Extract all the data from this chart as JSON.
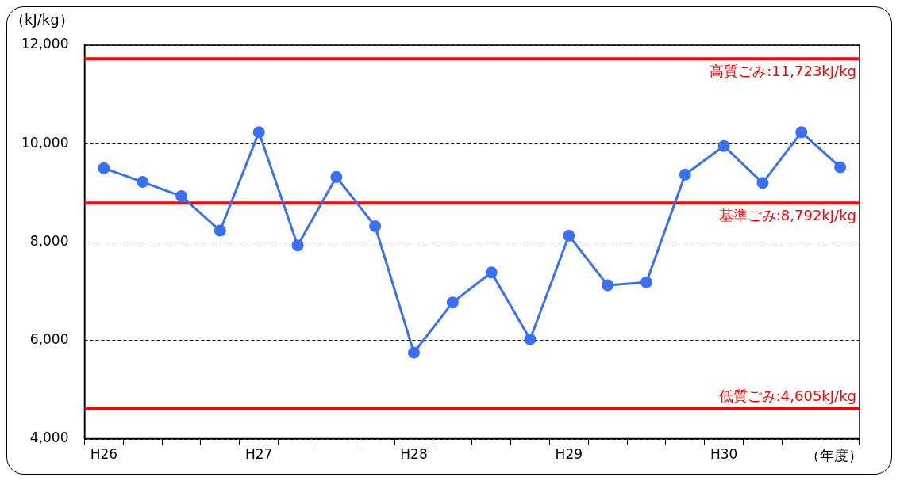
{
  "chart_data": {
    "type": "line",
    "xlabel": "（年度）",
    "ylabel": "（kJ/kg）",
    "categories": [
      "H26",
      null,
      null,
      null,
      "H27",
      null,
      null,
      null,
      "H28",
      null,
      null,
      null,
      "H29",
      null,
      null,
      null,
      "H30",
      null,
      null,
      null
    ],
    "series": [
      {
        "color": "#3a6ff7",
        "values": [
          9500,
          9220,
          8930,
          8230,
          10230,
          7930,
          9320,
          8320,
          5750,
          6770,
          7380,
          6020,
          8130,
          7120,
          7180,
          9370,
          9950,
          9200,
          10230,
          9520
        ]
      }
    ],
    "ylim": [
      4000,
      12000
    ],
    "yticks": [
      {
        "value": 4000,
        "label": "4,000"
      },
      {
        "value": 6000,
        "label": "6,000"
      },
      {
        "value": 8000,
        "label": "8,000"
      },
      {
        "value": 10000,
        "label": "10,000"
      },
      {
        "value": 12000,
        "label": "12,000"
      }
    ],
    "grid": "y",
    "marker": "circle",
    "line_style": "solid",
    "legend": false,
    "ref_lines": [
      {
        "axis": "y",
        "value": 11723,
        "label": "高質ごみ:11,723kJ/kg",
        "color": "#ff0000"
      },
      {
        "axis": "y",
        "value": 8792,
        "label": "基準ごみ:8,792kJ/kg",
        "color": "#ff0000"
      },
      {
        "axis": "y",
        "value": 4605,
        "label": "低質ごみ:4,605kJ/kg",
        "color": "#ff0000"
      }
    ]
  }
}
